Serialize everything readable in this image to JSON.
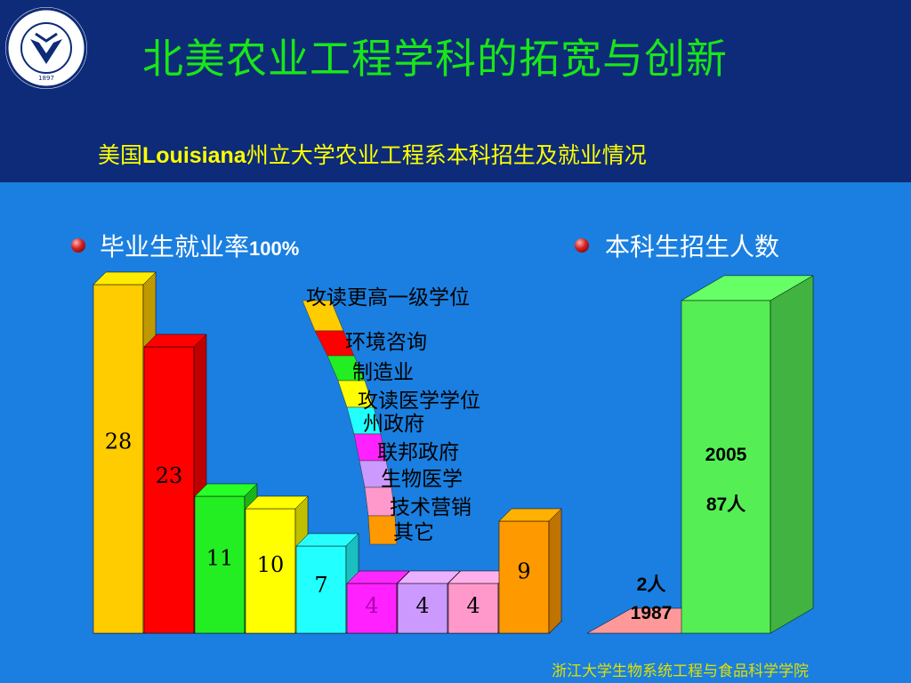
{
  "header": {
    "title": "北美农业工程学科的拓宽与创新",
    "subtitle_prefix": "美国",
    "subtitle_bold": "Louisiana",
    "subtitle_suffix": "州立大学农业工程系本科招生及就业情况",
    "logo_text": "浙江大学 ZHEJIANG UNIVERSITY 1897"
  },
  "sections": {
    "left_label": "毕业生就业率",
    "left_value": "100%",
    "right_label": "本科生招生人数"
  },
  "footer": "浙江大学生物系统工程与食品科学学院",
  "colors": {
    "header_bg": "#0d2b78",
    "body_bg": "#1a7fe0",
    "title": "#19e619",
    "subtitle": "#ffff00"
  },
  "chart_data": [
    {
      "type": "bar",
      "categories": [
        "攻读更高一级学位",
        "环境咨询",
        "制造业",
        "攻读医学学位",
        "州政府",
        "联邦政府",
        "生物医学",
        "技术营销",
        "其它"
      ],
      "values": [
        28,
        23,
        11,
        10,
        7,
        4,
        4,
        4,
        9
      ],
      "value_labels": [
        "28",
        "23",
        "11",
        "10",
        "7",
        "4",
        "4",
        "4",
        "9"
      ],
      "colors": [
        "#ffcc00",
        "#ff0000",
        "#22ee22",
        "#ffff00",
        "#22ffff",
        "#ff22ff",
        "#cc99ff",
        "#ff99cc",
        "#ff9900"
      ],
      "ylim": [
        0,
        30
      ]
    },
    {
      "type": "bar",
      "categories": [
        "1987",
        "2005"
      ],
      "values": [
        2,
        87
      ],
      "value_labels": [
        "2人",
        "87人"
      ],
      "colors": [
        "#ff9999",
        "#55ee55"
      ],
      "ylim": [
        0,
        90
      ]
    }
  ]
}
